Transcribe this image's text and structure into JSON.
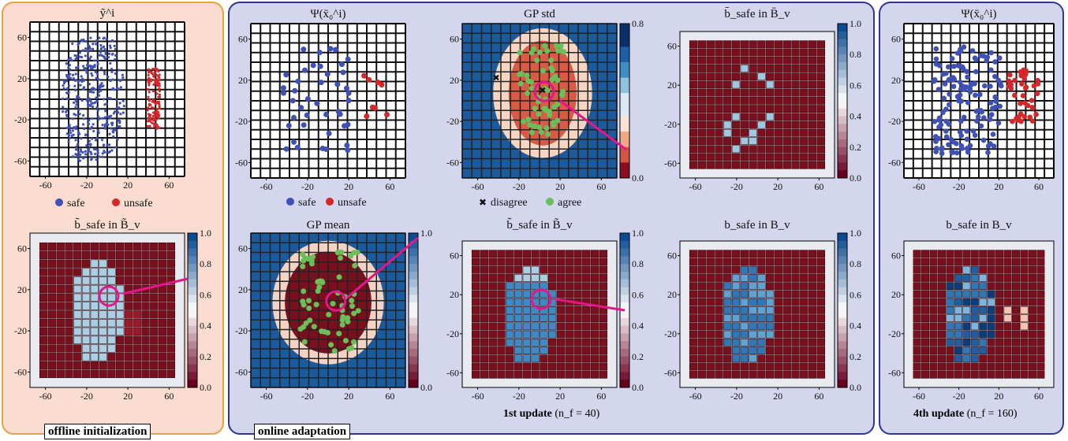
{
  "captions": {
    "offline": "offline initialization",
    "online": "online adaptation",
    "update1": "1st update",
    "update1_n": "(n_f = 40)",
    "update4": "4th update",
    "update4_n": "(n_f = 160)"
  },
  "colors": {
    "offline_bg": "#fbdcd0",
    "offline_border": "#e9a23b",
    "online_bg": "#d3d6ec",
    "online_border": "#2f3592",
    "safe": "#3f51b5",
    "unsafe": "#d62728",
    "agree": "#6bbf59",
    "disagree": "#e8c320",
    "highlight": "#e5158a",
    "unsafe_cell": "#7a0f1e"
  },
  "legends": {
    "safe": "safe",
    "unsafe": "unsafe",
    "disagree": "disagree",
    "agree": "agree"
  },
  "chart_data": [
    {
      "id": "offline_tsne",
      "type": "scatter",
      "title": "ỹ^i",
      "x_ticks": [
        "-60",
        "-20",
        "20",
        "60"
      ],
      "y_ticks": [
        "60",
        "20",
        "-20",
        "-60"
      ],
      "xlim": [
        -80,
        80
      ],
      "ylim": [
        -70,
        70
      ],
      "series": [
        {
          "name": "safe",
          "cluster": "main"
        },
        {
          "name": "unsafe",
          "cluster": "right"
        }
      ]
    },
    {
      "id": "offline_bsafe",
      "type": "heatmap",
      "title": "b̃_safe in B̃_v",
      "x_ticks": [
        "-60",
        "-20",
        "20",
        "60"
      ],
      "y_ticks": [
        "60",
        "20",
        "-20",
        "-60"
      ],
      "colorbar": {
        "ticks": [
          "1.0",
          "0.8",
          "0.6",
          "0.4",
          "0.2",
          "0.0"
        ],
        "range": [
          0,
          1
        ]
      },
      "level": 0.72
    },
    {
      "id": "online_psi",
      "type": "scatter",
      "title": "Ψ(x̄₀^i)",
      "x_ticks": [
        "-60",
        "-20",
        "20",
        "60"
      ],
      "y_ticks": [
        "60",
        "20",
        "-20",
        "-60"
      ],
      "series": [
        {
          "name": "safe"
        },
        {
          "name": "unsafe"
        }
      ]
    },
    {
      "id": "online_gpstd",
      "type": "heatmap",
      "title": "GP std",
      "x_ticks": [
        "-60",
        "-20",
        "20",
        "60"
      ],
      "y_ticks": [
        "60",
        "20",
        "-20",
        "-60"
      ],
      "colorbar": {
        "ticks": [
          "0.8",
          "0.0"
        ],
        "range": [
          0,
          0.8
        ]
      },
      "series": [
        {
          "name": "disagree"
        },
        {
          "name": "agree"
        }
      ]
    },
    {
      "id": "online_bbar",
      "type": "heatmap",
      "title": "b̄_safe in B̄_v",
      "x_ticks": [
        "-60",
        "-20",
        "20",
        "60"
      ],
      "y_ticks": [
        "60",
        "20",
        "-20",
        "-60"
      ],
      "colorbar": {
        "ticks": [
          "1.0",
          "0.8",
          "0.6",
          "0.4",
          "0.2",
          "0.0"
        ],
        "range": [
          0,
          1
        ]
      }
    },
    {
      "id": "online_gpmean",
      "type": "heatmap",
      "title": "GP mean",
      "x_ticks": [
        "-60",
        "-20",
        "20",
        "60"
      ],
      "y_ticks": [
        "60",
        "20",
        "-20",
        "-60"
      ],
      "colorbar": {
        "ticks": [
          "1.0",
          "0.0"
        ],
        "range": [
          0,
          1
        ]
      }
    },
    {
      "id": "online_btilde",
      "type": "heatmap",
      "title": "b̃_safe in B̃_v",
      "x_ticks": [
        "-60",
        "-20",
        "20",
        "60"
      ],
      "y_ticks": [
        "60",
        "20",
        "-20",
        "-60"
      ],
      "colorbar": {
        "ticks": [
          "1.0",
          "0.8",
          "0.6",
          "0.4",
          "0.2",
          "0.0"
        ],
        "range": [
          0,
          1
        ]
      }
    },
    {
      "id": "online_bsafe",
      "type": "heatmap",
      "title": "b_safe in B_v",
      "x_ticks": [
        "-60",
        "-20",
        "20",
        "60"
      ],
      "y_ticks": [
        "60",
        "20",
        "-20",
        "-60"
      ],
      "colorbar": {
        "ticks": [
          "1.0",
          "0.8",
          "0.6",
          "0.4",
          "0.2",
          "0.0"
        ],
        "range": [
          0,
          1
        ]
      }
    },
    {
      "id": "update4_psi",
      "type": "scatter",
      "title": "Ψ(x̄₀^i)",
      "x_ticks": [
        "-60",
        "-20",
        "20",
        "60"
      ],
      "y_ticks": [
        "60",
        "20",
        "-20",
        "-60"
      ],
      "series": [
        {
          "name": "safe"
        },
        {
          "name": "unsafe"
        }
      ]
    },
    {
      "id": "update4_bsafe",
      "type": "heatmap",
      "title": "b_safe in B_v",
      "x_ticks": [
        "-60",
        "-20",
        "20",
        "60"
      ],
      "y_ticks": [
        "60",
        "20",
        "-20",
        "-60"
      ]
    }
  ]
}
